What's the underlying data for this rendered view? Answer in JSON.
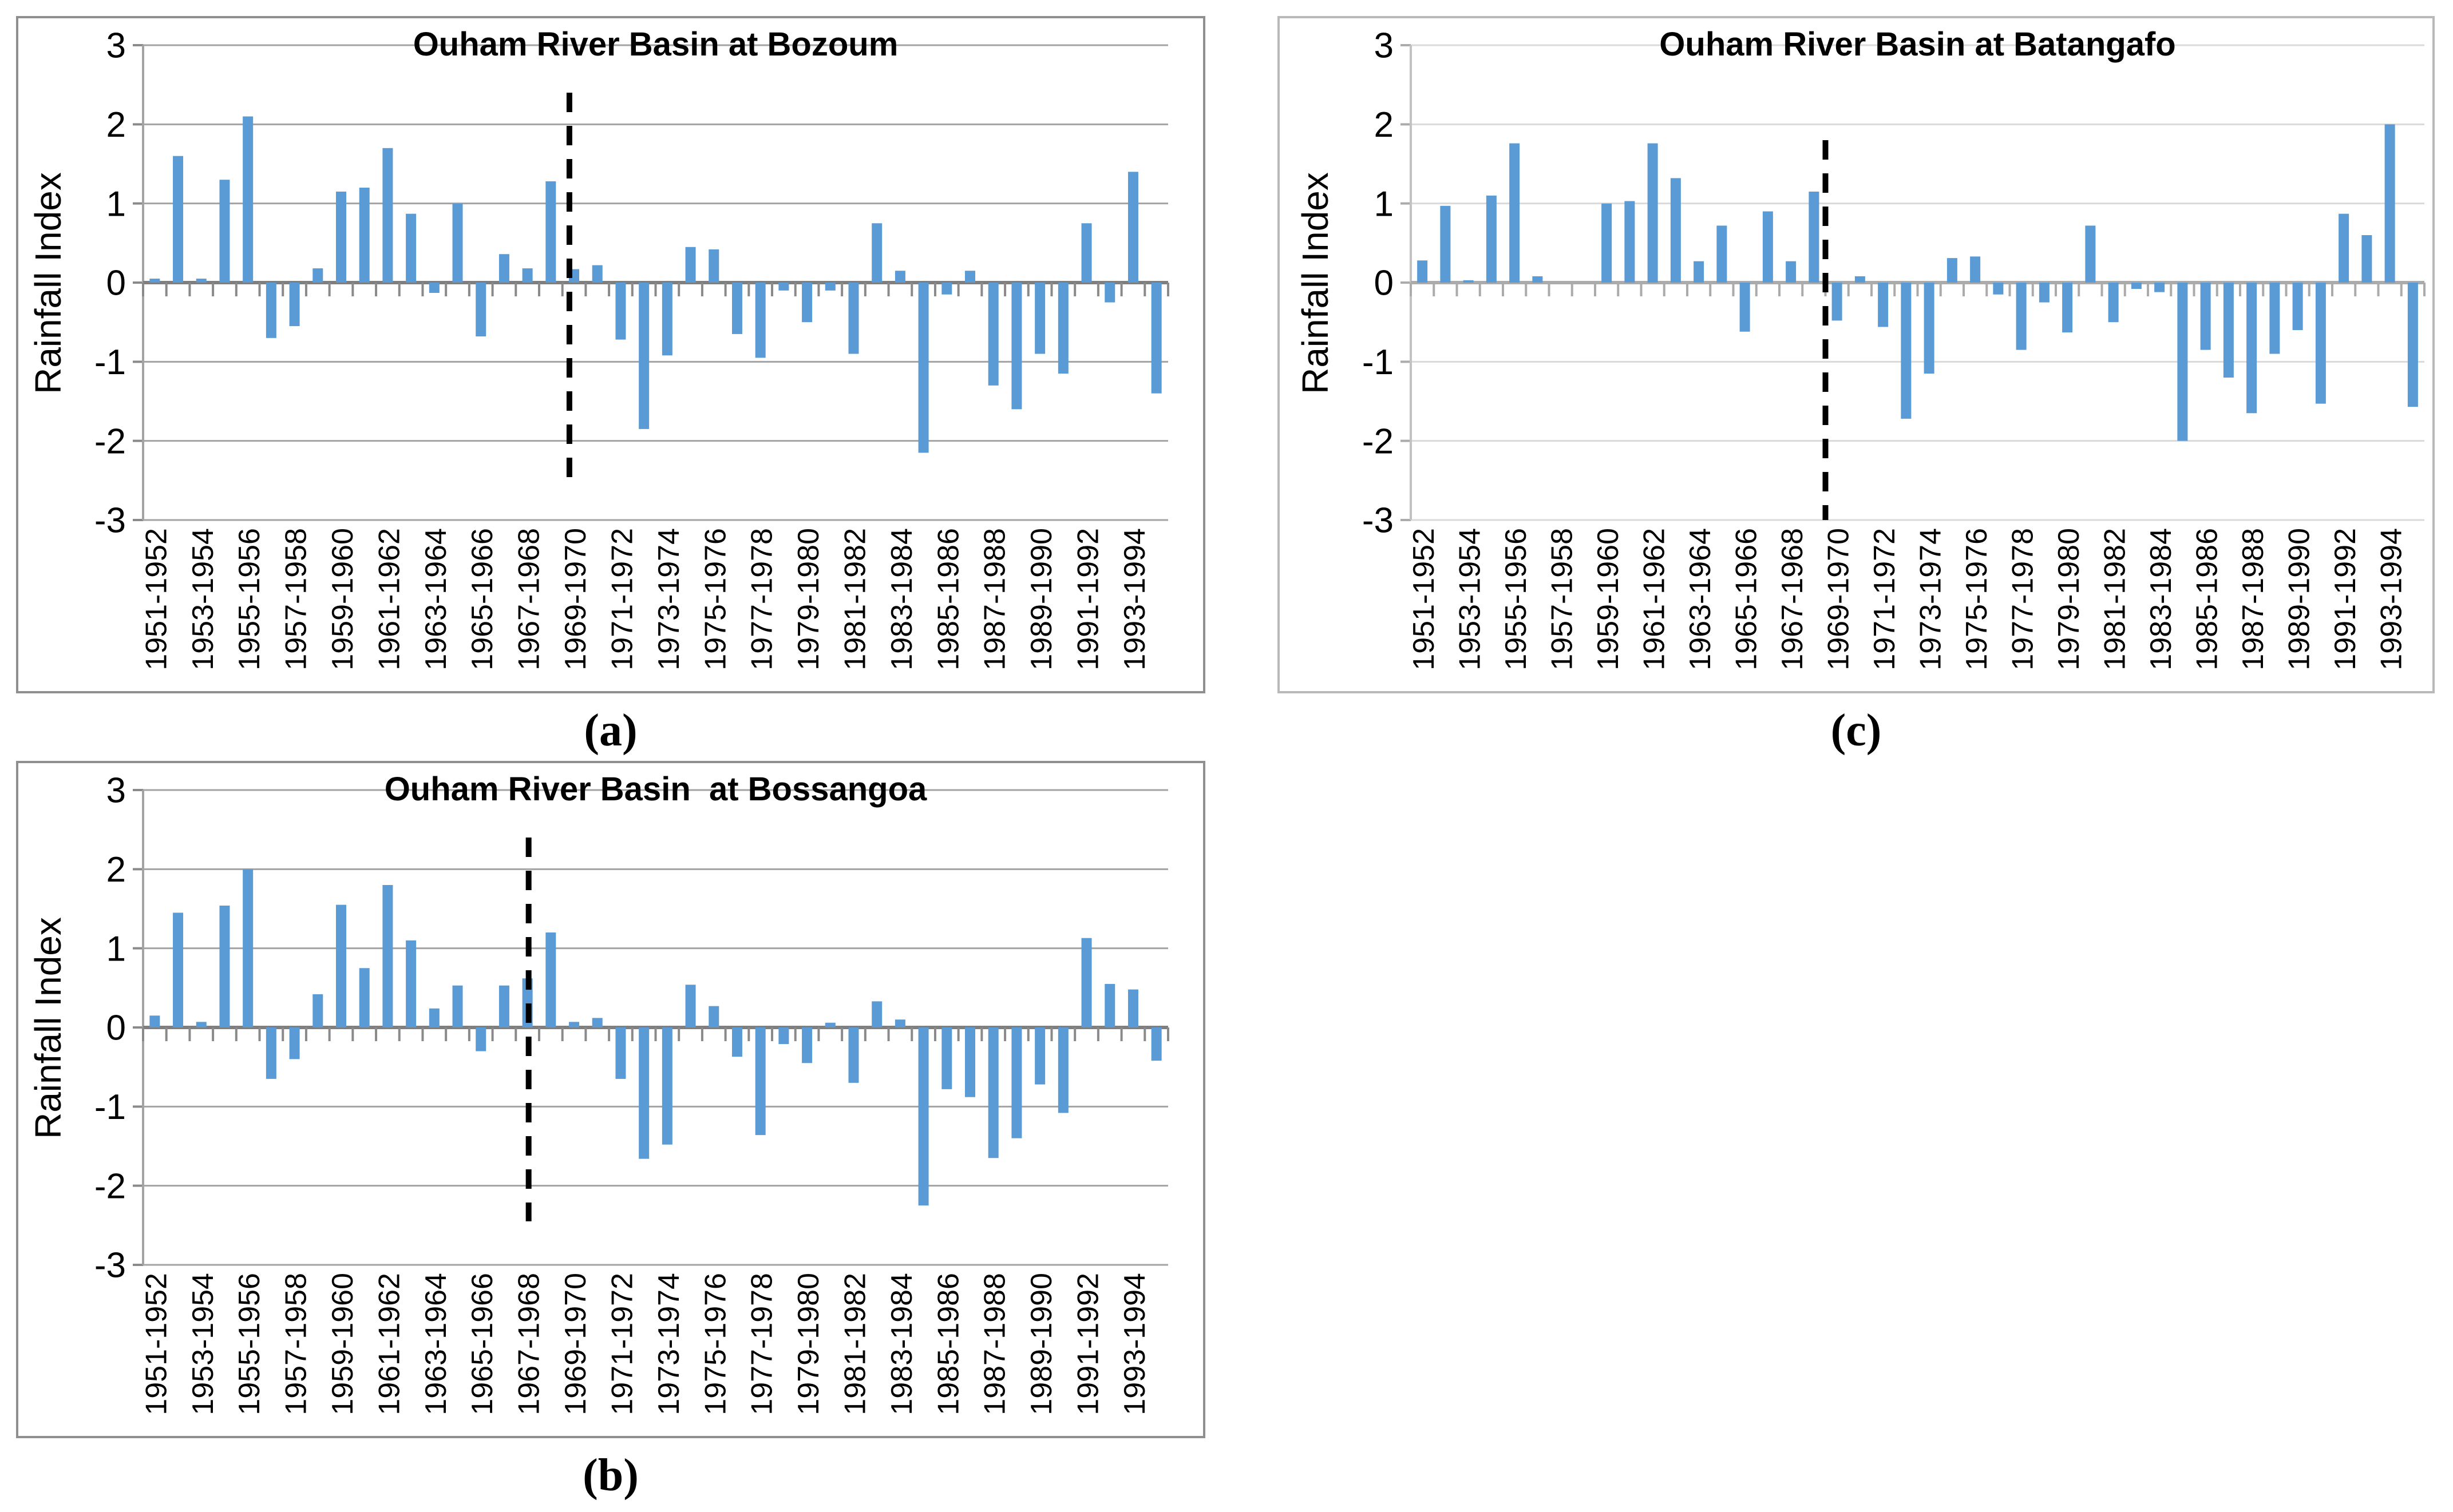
{
  "figure": {
    "y_axis_label": "Rainfall Index",
    "x_tick_labels": [
      "1951-1952",
      "1953-1954",
      "1955-1956",
      "1957-1958",
      "1959-1960",
      "1961-1962",
      "1963-1964",
      "1965-1966",
      "1967-1968",
      "1969-1970",
      "1971-1972",
      "1973-1974",
      "1975-1976",
      "1977-1978",
      "1979-1980",
      "1981-1982",
      "1983-1984",
      "1985-1986",
      "1987-1988",
      "1989-1990",
      "1991-1992",
      "1993-1994"
    ],
    "captions": {
      "a": "(a)",
      "b": "(b)",
      "c": "(c)"
    },
    "bar_color": "#5B9BD5",
    "dashed_line_color": "#000000"
  },
  "chart_data": [
    {
      "id": "a",
      "type": "bar",
      "title": "Ouham River Basin at Bozoum",
      "ylabel": "Rainfall Index",
      "ylim": [
        -3,
        3
      ],
      "y_ticks": [
        3,
        2,
        1,
        0,
        -1,
        -2,
        -3
      ],
      "grid": "on",
      "categories": [
        "1951-1952",
        "1952-1953",
        "1953-1954",
        "1954-1955",
        "1955-1956",
        "1956-1957",
        "1957-1958",
        "1958-1959",
        "1959-1960",
        "1960-1961",
        "1961-1962",
        "1962-1963",
        "1963-1964",
        "1964-1965",
        "1965-1966",
        "1966-1967",
        "1967-1968",
        "1968-1969",
        "1969-1970",
        "1970-1971",
        "1971-1972",
        "1972-1973",
        "1973-1974",
        "1974-1975",
        "1975-1976",
        "1976-1977",
        "1977-1978",
        "1978-1979",
        "1979-1980",
        "1980-1981",
        "1981-1982",
        "1982-1983",
        "1983-1984",
        "1984-1985",
        "1985-1986",
        "1986-1987",
        "1987-1988",
        "1988-1989",
        "1989-1990",
        "1990-1991",
        "1991-1992",
        "1992-1993",
        "1993-1994",
        "1994-1995"
      ],
      "values": [
        0.05,
        1.6,
        0.05,
        1.3,
        2.1,
        -0.7,
        -0.55,
        0.18,
        1.15,
        1.2,
        1.7,
        0.87,
        -0.13,
        1.0,
        -0.68,
        0.36,
        0.18,
        1.28,
        0.17,
        0.22,
        -0.72,
        -1.85,
        -0.92,
        0.45,
        0.42,
        -0.65,
        -0.95,
        -0.1,
        -0.5,
        -0.1,
        -0.9,
        0.75,
        0.15,
        -2.15,
        -0.15,
        0.15,
        -1.3,
        -1.6,
        -0.9,
        -1.15,
        0.75,
        -0.25,
        1.4,
        -1.4
      ],
      "dashed_line": {
        "at_label": "1969-1970",
        "category_index": 18.3,
        "from_value": 2.4,
        "to_value": -2.6
      }
    },
    {
      "id": "b",
      "type": "bar",
      "title": "Ouham River Basin  at Bossangoa",
      "ylabel": "Rainfall Index",
      "ylim": [
        -3,
        3
      ],
      "y_ticks": [
        3,
        2,
        1,
        0,
        -1,
        -2,
        -3
      ],
      "grid": "on",
      "categories": [
        "1951-1952",
        "1952-1953",
        "1953-1954",
        "1954-1955",
        "1955-1956",
        "1956-1957",
        "1957-1958",
        "1958-1959",
        "1959-1960",
        "1960-1961",
        "1961-1962",
        "1962-1963",
        "1963-1964",
        "1964-1965",
        "1965-1966",
        "1966-1967",
        "1967-1968",
        "1968-1969",
        "1969-1970",
        "1970-1971",
        "1971-1972",
        "1972-1973",
        "1973-1974",
        "1974-1975",
        "1975-1976",
        "1976-1977",
        "1977-1978",
        "1978-1979",
        "1979-1980",
        "1980-1981",
        "1981-1982",
        "1982-1983",
        "1983-1984",
        "1984-1985",
        "1985-1986",
        "1986-1987",
        "1987-1988",
        "1988-1989",
        "1989-1990",
        "1990-1991",
        "1991-1992",
        "1992-1993",
        "1993-1994",
        "1994-1995"
      ],
      "values": [
        0.15,
        1.45,
        0.07,
        1.54,
        2.0,
        -0.65,
        -0.4,
        0.42,
        1.55,
        0.75,
        1.8,
        1.1,
        0.24,
        0.53,
        -0.3,
        0.53,
        0.62,
        1.2,
        0.07,
        0.12,
        -0.65,
        -1.66,
        -1.48,
        0.54,
        0.27,
        -0.37,
        -1.36,
        -0.21,
        -0.45,
        0.06,
        -0.7,
        0.33,
        0.1,
        -2.25,
        -0.78,
        -0.88,
        -1.65,
        -1.4,
        -0.72,
        -1.08,
        1.13,
        0.55,
        0.48,
        -0.42
      ],
      "dashed_line": {
        "at_label": "1967-1968",
        "category_index": 16.55,
        "from_value": 2.4,
        "to_value": -2.45
      }
    },
    {
      "id": "c",
      "type": "bar",
      "title": "Ouham River Basin at Batangafo",
      "ylabel": "Rainfall Index",
      "ylim": [
        -3,
        3
      ],
      "y_ticks": [
        3,
        2,
        1,
        0,
        -1,
        -2,
        -3
      ],
      "grid": "on",
      "categories": [
        "1951-1952",
        "1952-1953",
        "1953-1954",
        "1954-1955",
        "1955-1956",
        "1956-1957",
        "1957-1958",
        "1958-1959",
        "1959-1960",
        "1960-1961",
        "1961-1962",
        "1962-1963",
        "1963-1964",
        "1964-1965",
        "1965-1966",
        "1966-1967",
        "1967-1968",
        "1968-1969",
        "1969-1970",
        "1970-1971",
        "1971-1972",
        "1972-1973",
        "1973-1974",
        "1974-1975",
        "1975-1976",
        "1976-1977",
        "1977-1978",
        "1978-1979",
        "1979-1980",
        "1980-1981",
        "1981-1982",
        "1982-1983",
        "1983-1984",
        "1984-1985",
        "1985-1986",
        "1986-1987",
        "1987-1988",
        "1988-1989",
        "1989-1990",
        "1990-1991",
        "1991-1992",
        "1992-1993",
        "1993-1994",
        "1994-1995"
      ],
      "values": [
        0.28,
        0.97,
        0.03,
        1.1,
        1.76,
        0.08,
        0.0,
        0.0,
        1.0,
        1.03,
        1.76,
        1.32,
        0.27,
        0.72,
        -0.62,
        0.9,
        0.27,
        1.15,
        -0.48,
        0.08,
        -0.56,
        -1.72,
        -1.15,
        0.31,
        0.33,
        -0.15,
        -0.85,
        -0.25,
        -0.63,
        0.72,
        -0.5,
        -0.08,
        -0.12,
        -2.0,
        -0.85,
        -1.2,
        -1.65,
        -0.9,
        -0.6,
        -1.53,
        0.87,
        0.6,
        2.0,
        -1.57
      ],
      "dashed_line": {
        "at_label": "1969-1970",
        "category_index": 18.0,
        "from_value": 1.8,
        "to_value": -3.0
      }
    }
  ]
}
